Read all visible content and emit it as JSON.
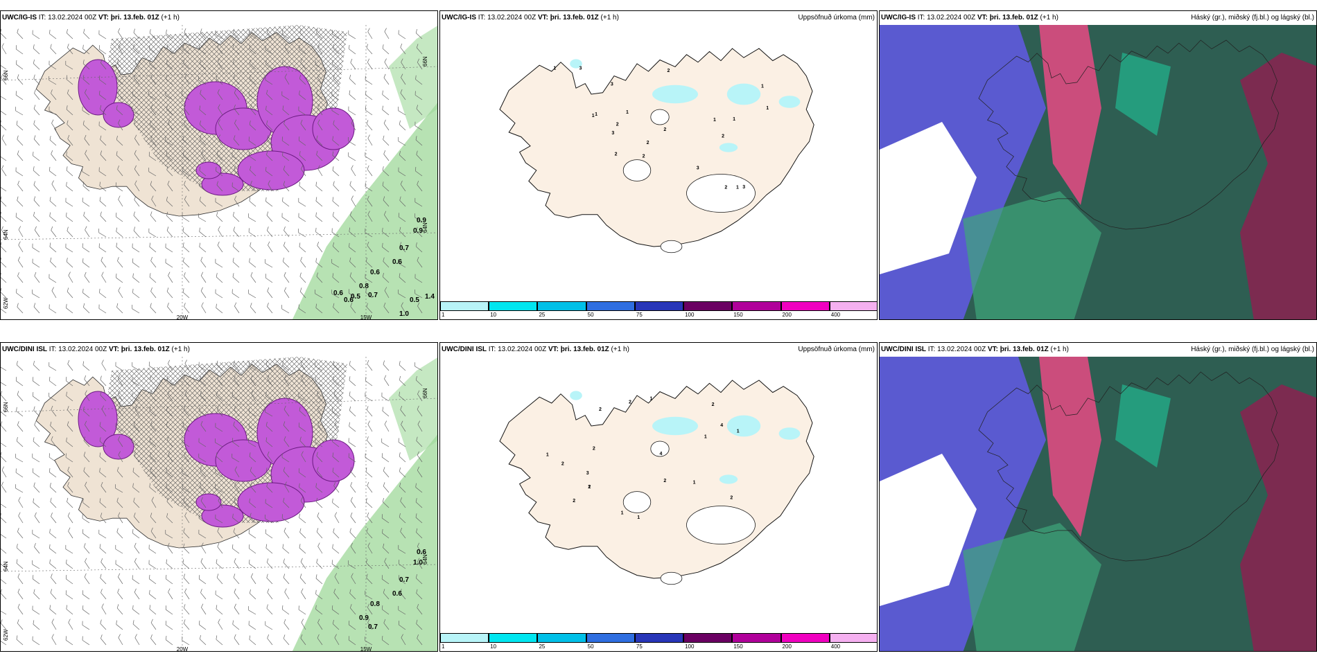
{
  "rows": [
    {
      "model": "UWC/IG-IS",
      "it_label": "IT:",
      "it_value": "13.02.2024 00Z",
      "vt_label": "VT:",
      "vt_value": "þri. 13.feb. 01Z",
      "lead": "(+1 h)",
      "precip_title": "Uppsöfnuð úrkoma (mm)",
      "cloud_title": "Háský (gr.), miðský (fj.bl.) og lágský (bl.)",
      "lon_labels": [
        "20W",
        "15W"
      ],
      "lat_labels": [
        "66N",
        "64N",
        "66N",
        "64N",
        "62W"
      ],
      "snow_values": [
        "0.9",
        "0.9",
        "0.7",
        "0.6",
        "0.6",
        "0.8",
        "0.7",
        "0.6",
        "0.6",
        "0.5",
        "1.0",
        "0.5",
        "1.4"
      ],
      "precip_values": [
        "2",
        "1",
        "3",
        "2",
        "3",
        "3",
        "2",
        "3",
        "2",
        "1",
        "1",
        "2",
        "1",
        "2",
        "2",
        "3",
        "2",
        "1",
        "1",
        "1",
        "1",
        "1"
      ]
    },
    {
      "model": "UWC/DINI ISL",
      "it_label": "IT:",
      "it_value": "13.02.2024 00Z",
      "vt_label": "VT:",
      "vt_value": "þri. 13.feb. 01Z",
      "lead": "(+1 h)",
      "precip_title": "Uppsöfnuð úrkoma (mm)",
      "cloud_title": "Háský (gr.), miðský (fj.bl.) og lágský (bl.)",
      "lon_labels": [
        "20W",
        "15W"
      ],
      "lat_labels": [
        "66N",
        "64N",
        "66N",
        "64N",
        "62W"
      ],
      "snow_values": [
        "0.6",
        "1.0",
        "0.7",
        "0.6",
        "0.8",
        "0.9",
        "0.7"
      ],
      "precip_values": [
        "2",
        "2",
        "2",
        "4",
        "2",
        "2",
        "3",
        "2",
        "1",
        "1",
        "2",
        "1",
        "1",
        "4",
        "1",
        "2",
        "2",
        "1",
        "1",
        "1"
      ]
    }
  ],
  "colorbar": {
    "ticks": [
      "1",
      "10",
      "25",
      "50",
      "75",
      "100",
      "150",
      "200",
      "400"
    ],
    "colors": [
      "#b8f4f8",
      "#00e6f0",
      "#00c0e8",
      "#2f6ee0",
      "#2836b8",
      "#6a0062",
      "#b0009a",
      "#f000c0",
      "#f5b0f0"
    ]
  },
  "colors": {
    "land": "#efe3d4",
    "land_precip": "#fbf0e4",
    "snow": "#c25ad8",
    "rain": "#9fd89a",
    "cloud_high": "#2e5e52",
    "cloud_mid": "#e64a84",
    "cloud_low": "#5a5ad0"
  }
}
